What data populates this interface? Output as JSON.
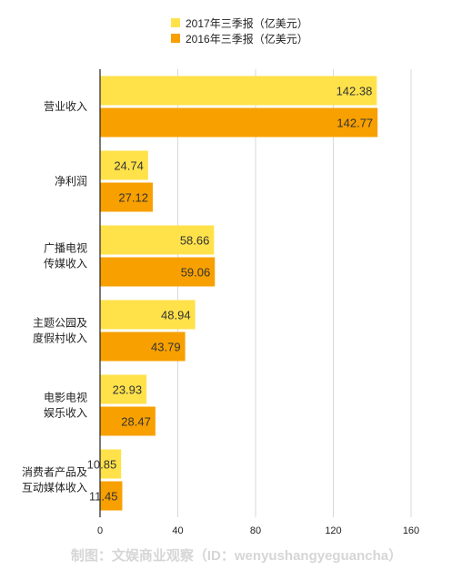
{
  "chart_data": {
    "type": "bar",
    "orientation": "horizontal",
    "categories": [
      [
        "营业收入"
      ],
      [
        "净利润"
      ],
      [
        "广播电视",
        "传媒收入"
      ],
      [
        "主题公园及",
        "度假村收入"
      ],
      [
        "电影电视",
        "娱乐收入"
      ],
      [
        "消费者产品及",
        "互动媒体收入"
      ]
    ],
    "series": [
      {
        "name": "2017年三季报（亿美元）",
        "values": [
          142.38,
          24.74,
          58.66,
          48.94,
          23.93,
          10.85
        ],
        "labels": [
          "142.38",
          "24.74",
          "58.66",
          "48.94",
          "23.93",
          "10.85"
        ],
        "color": "#ffe24a"
      },
      {
        "name": "2016年三季报（亿美元）",
        "values": [
          142.77,
          27.12,
          59.06,
          43.79,
          28.47,
          11.45
        ],
        "labels": [
          "142.77",
          "27.12",
          "59.06",
          "43.79",
          "28.47",
          "11.45"
        ],
        "color": "#f8a000"
      }
    ],
    "xlim": [
      0,
      160
    ],
    "xticks": [
      0,
      40,
      80,
      120,
      160
    ],
    "xtick_labels": [
      "0",
      "40",
      "80",
      "120",
      "160"
    ],
    "grid": true,
    "legend_position": "top-center"
  },
  "watermark": "制图：文娱商业观察（ID：wenyushangyeguancha）"
}
